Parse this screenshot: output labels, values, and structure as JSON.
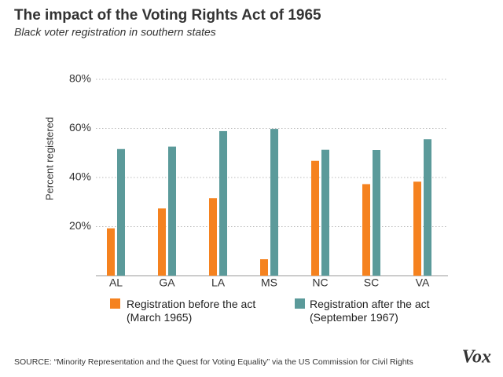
{
  "chart_data": {
    "type": "bar",
    "title": "The impact of the Voting Rights Act of 1965",
    "subtitle": "Black voter registration in southern states",
    "y_label": "Percent registered",
    "categories": [
      "AL",
      "GA",
      "LA",
      "MS",
      "NC",
      "SC",
      "VA"
    ],
    "series": [
      {
        "name": "Registration before the act (March 1965)",
        "color": "#f5821f",
        "values": [
          19.3,
          27.4,
          31.6,
          6.7,
          46.8,
          37.3,
          38.3
        ]
      },
      {
        "name": "Registration after the act (September 1967)",
        "color": "#5b9a9a",
        "values": [
          51.6,
          52.6,
          58.9,
          59.8,
          51.3,
          51.2,
          55.6
        ]
      }
    ],
    "ylim": [
      0,
      80
    ],
    "yticks": [
      {
        "value": 20,
        "label": "20%"
      },
      {
        "value": 40,
        "label": "40%"
      },
      {
        "value": 60,
        "label": "60%"
      },
      {
        "value": 80,
        "label": "80%"
      }
    ],
    "grid": true,
    "source": "SOURCE: “Minority Representation and the Quest for Voting Equality” via the US Commission for Civil Rights",
    "logo": "Vox"
  }
}
